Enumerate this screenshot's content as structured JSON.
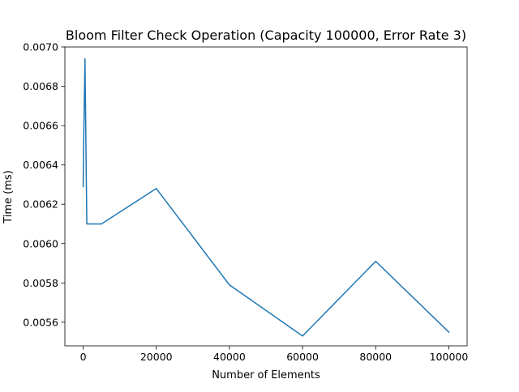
{
  "chart_data": {
    "type": "line",
    "title": "Bloom Filter Check Operation (Capacity 100000, Error Rate 3)",
    "xlabel": "Number of Elements",
    "ylabel": "Time (ms)",
    "xlim": [
      -5000,
      105000
    ],
    "ylim": [
      0.00548,
      0.007
    ],
    "xticks": [
      0,
      20000,
      40000,
      60000,
      80000,
      100000
    ],
    "xtick_labels": [
      "0",
      "20000",
      "40000",
      "60000",
      "80000",
      "100000"
    ],
    "yticks": [
      0.0056,
      0.0058,
      0.006,
      0.0062,
      0.0064,
      0.0066,
      0.0068,
      0.007
    ],
    "ytick_labels": [
      "0.0056",
      "0.0058",
      "0.0060",
      "0.0062",
      "0.0064",
      "0.0066",
      "0.0068",
      "0.0070"
    ],
    "grid": false,
    "legend": "none",
    "series": [
      {
        "color": "#1f77b4",
        "x": [
          10,
          100,
          500,
          1000,
          5000,
          20000,
          40000,
          60000,
          80000,
          100000
        ],
        "y": [
          0.00629,
          0.00647,
          0.00694,
          0.0061,
          0.0061,
          0.00628,
          0.00579,
          0.00553,
          0.00591,
          0.00555
        ]
      }
    ]
  }
}
